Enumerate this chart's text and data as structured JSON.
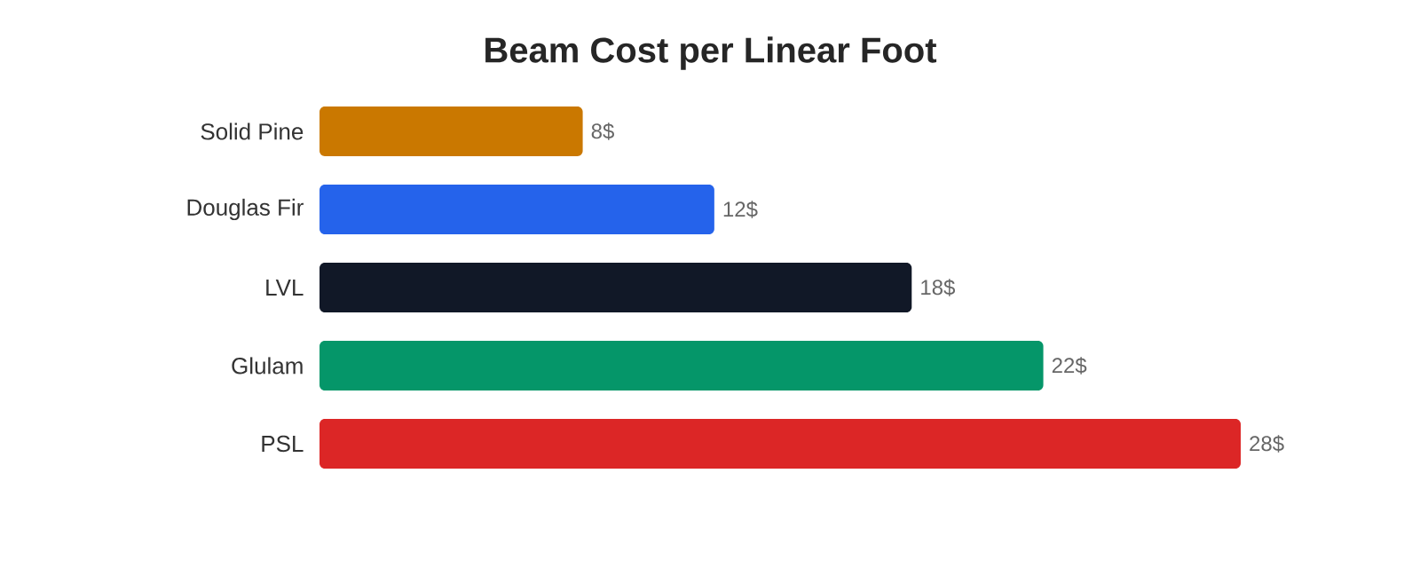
{
  "chart_data": {
    "type": "bar",
    "orientation": "horizontal",
    "title": "Beam Cost per Linear Foot",
    "categories": [
      "Solid Pine",
      "Douglas Fir",
      "LVL",
      "Glulam",
      "PSL"
    ],
    "values": [
      8,
      12,
      18,
      22,
      28
    ],
    "colors": [
      "#ca7800",
      "#2563eb",
      "#111827",
      "#059669",
      "#dc2626"
    ],
    "value_labels": [
      "8$",
      "12$",
      "18$",
      "22$",
      "28$"
    ]
  }
}
